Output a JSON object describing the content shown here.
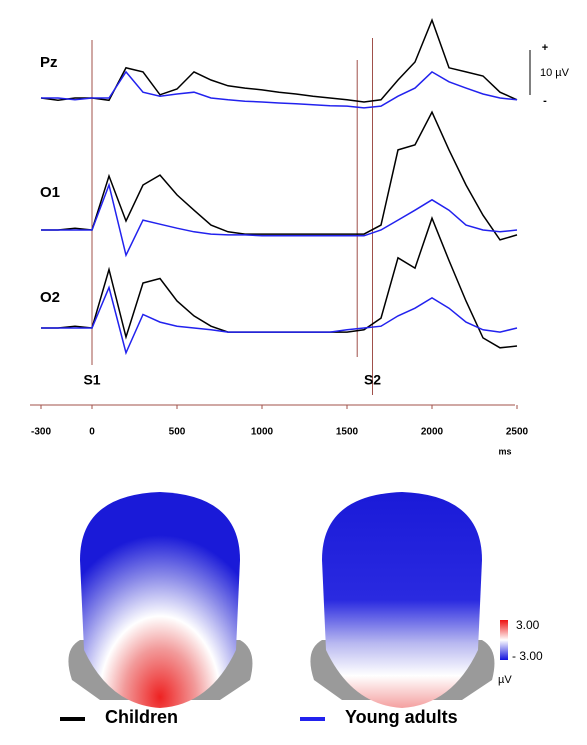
{
  "chart_data": {
    "type": "line",
    "x": [
      -300,
      -200,
      -100,
      0,
      100,
      200,
      300,
      400,
      500,
      600,
      700,
      800,
      900,
      1000,
      1100,
      1200,
      1300,
      1400,
      1500,
      1600,
      1700,
      1800,
      1900,
      2000,
      2100,
      2200,
      2300,
      2400,
      2500
    ],
    "xlim": [
      -300,
      2500
    ],
    "xticks": [
      -300,
      0,
      500,
      1000,
      1500,
      2000,
      2500
    ],
    "xlabel": "ms",
    "ylim": [
      -10,
      30
    ],
    "events": [
      {
        "label": "S1",
        "x": 0
      },
      {
        "x": 1560
      },
      {
        "label": "S2",
        "x": 1650
      }
    ],
    "scale_bar": {
      "value": 10,
      "label": "10 µV",
      "plus": "+",
      "minus": "-"
    },
    "series": [
      {
        "name": "Children",
        "color": "#000000"
      },
      {
        "name": "Young adults",
        "color": "#2222ee"
      }
    ],
    "channels": [
      {
        "name": "Pz",
        "series": [
          {
            "values": [
              0,
              -0.5,
              0,
              0,
              -0.5,
              6.7,
              5.8,
              0.7,
              2,
              5.8,
              4,
              2.7,
              2.2,
              1.8,
              1.3,
              0.9,
              0.4,
              0,
              -0.4,
              -0.9,
              -0.4,
              4,
              8,
              17.3,
              6.7,
              5.8,
              4.9,
              1.3,
              -0.4
            ]
          },
          {
            "values": [
              0,
              0,
              -0.4,
              0,
              0,
              5.8,
              1.3,
              0.4,
              0.9,
              1.3,
              0,
              -0.4,
              -0.7,
              -0.9,
              -1.1,
              -1.3,
              -1.5,
              -1.7,
              -1.8,
              -2.2,
              -1.8,
              0.4,
              2.2,
              5.8,
              3.6,
              2.2,
              0.9,
              0,
              -0.4
            ]
          }
        ]
      },
      {
        "name": "O1",
        "series": [
          {
            "values": [
              0,
              0,
              0.4,
              0,
              12,
              2,
              10,
              12.2,
              7.8,
              4.4,
              1.1,
              -0.4,
              -0.9,
              -0.9,
              -0.9,
              -0.9,
              -0.9,
              -0.9,
              -0.9,
              -0.9,
              1.1,
              17.8,
              18.9,
              26.2,
              17.8,
              10,
              3.3,
              -2.2,
              -1.1
            ]
          },
          {
            "values": [
              0,
              0,
              0,
              0,
              10,
              -5.6,
              2.2,
              1.3,
              0.4,
              -0.4,
              -0.9,
              -1.1,
              -1.1,
              -1.3,
              -1.3,
              -1.3,
              -1.3,
              -1.3,
              -1.3,
              -1.3,
              0,
              2.2,
              4.4,
              6.7,
              4.4,
              1.1,
              0,
              -0.4,
              0
            ]
          }
        ]
      },
      {
        "name": "O2",
        "series": [
          {
            "values": [
              0,
              0,
              0.4,
              0,
              13,
              -2,
              10,
              11,
              6,
              2.7,
              0.4,
              -0.9,
              -0.9,
              -0.9,
              -0.9,
              -0.9,
              -0.9,
              -0.9,
              -0.9,
              -0.4,
              2.2,
              15.6,
              13.3,
              24.4,
              15,
              6,
              -2.2,
              -4.4,
              -4
            ]
          },
          {
            "values": [
              0,
              0,
              0,
              0,
              9,
              -5.5,
              3,
              1.3,
              0.4,
              0,
              -0.4,
              -0.9,
              -0.9,
              -0.9,
              -0.9,
              -0.9,
              -0.9,
              -0.9,
              -0.4,
              0,
              0.4,
              2.7,
              4.4,
              6.7,
              4.4,
              1.3,
              -0.4,
              -0.9,
              0
            ]
          }
        ]
      }
    ],
    "colorbar": {
      "max": {
        "value": 3,
        "label": "3.00"
      },
      "min": {
        "value": -3,
        "label": "- 3.00"
      },
      "unit": "µV"
    }
  }
}
